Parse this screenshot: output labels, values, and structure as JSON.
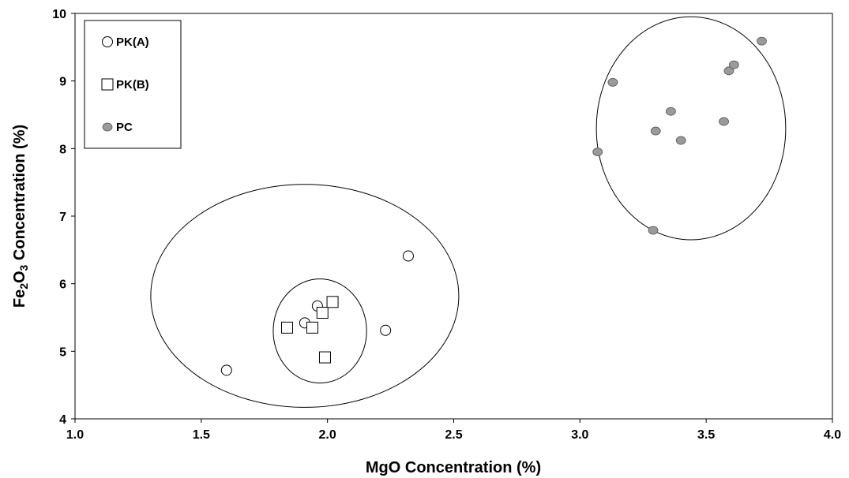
{
  "chart_data": {
    "type": "scatter",
    "title": "",
    "xlabel": "MgO Concentration (%)",
    "ylabel": {
      "parts": [
        {
          "text": "Fe",
          "sub": false
        },
        {
          "text": "2",
          "sub": true
        },
        {
          "text": "O",
          "sub": false
        },
        {
          "text": "3",
          "sub": true
        },
        {
          "text": " Concentration (%)",
          "sub": false
        }
      ]
    },
    "xlim": [
      1.0,
      4.0
    ],
    "ylim": [
      4,
      10
    ],
    "xticks": [
      "1.0",
      "1.5",
      "2.0",
      "2.5",
      "3.0",
      "3.5",
      "4.0"
    ],
    "yticks": [
      "4",
      "5",
      "6",
      "7",
      "8",
      "9",
      "10"
    ],
    "grid": false,
    "legend_position": "top-left",
    "series": [
      {
        "name": "PK(A)",
        "marker": "open-circle",
        "points": [
          {
            "x": 1.6,
            "y": 4.72
          },
          {
            "x": 1.91,
            "y": 5.42
          },
          {
            "x": 1.96,
            "y": 5.67
          },
          {
            "x": 2.23,
            "y": 5.31
          },
          {
            "x": 2.32,
            "y": 6.41
          }
        ]
      },
      {
        "name": "PK(B)",
        "marker": "open-square",
        "points": [
          {
            "x": 1.84,
            "y": 5.35
          },
          {
            "x": 1.94,
            "y": 5.35
          },
          {
            "x": 1.98,
            "y": 5.57
          },
          {
            "x": 2.02,
            "y": 5.73
          },
          {
            "x": 1.99,
            "y": 4.91
          }
        ]
      },
      {
        "name": "PC",
        "marker": "filled-ellipse",
        "color": "#9a9a9a",
        "points": [
          {
            "x": 3.07,
            "y": 7.95
          },
          {
            "x": 3.13,
            "y": 8.98
          },
          {
            "x": 3.29,
            "y": 6.79
          },
          {
            "x": 3.3,
            "y": 8.26
          },
          {
            "x": 3.36,
            "y": 8.55
          },
          {
            "x": 3.4,
            "y": 8.12
          },
          {
            "x": 3.57,
            "y": 8.4
          },
          {
            "x": 3.59,
            "y": 9.15
          },
          {
            "x": 3.61,
            "y": 9.24
          },
          {
            "x": 3.72,
            "y": 9.59
          }
        ]
      }
    ],
    "enclosures": [
      {
        "name": "outer-pk-ellipse",
        "cx": 1.91,
        "cy": 5.82,
        "rx": 0.61,
        "ry": 1.65
      },
      {
        "name": "inner-pk-ellipse",
        "cx": 1.97,
        "cy": 5.3,
        "rx": 0.185,
        "ry": 0.77
      },
      {
        "name": "pc-ellipse",
        "cx": 3.44,
        "cy": 8.3,
        "rx": 0.375,
        "ry": 1.65
      }
    ]
  }
}
